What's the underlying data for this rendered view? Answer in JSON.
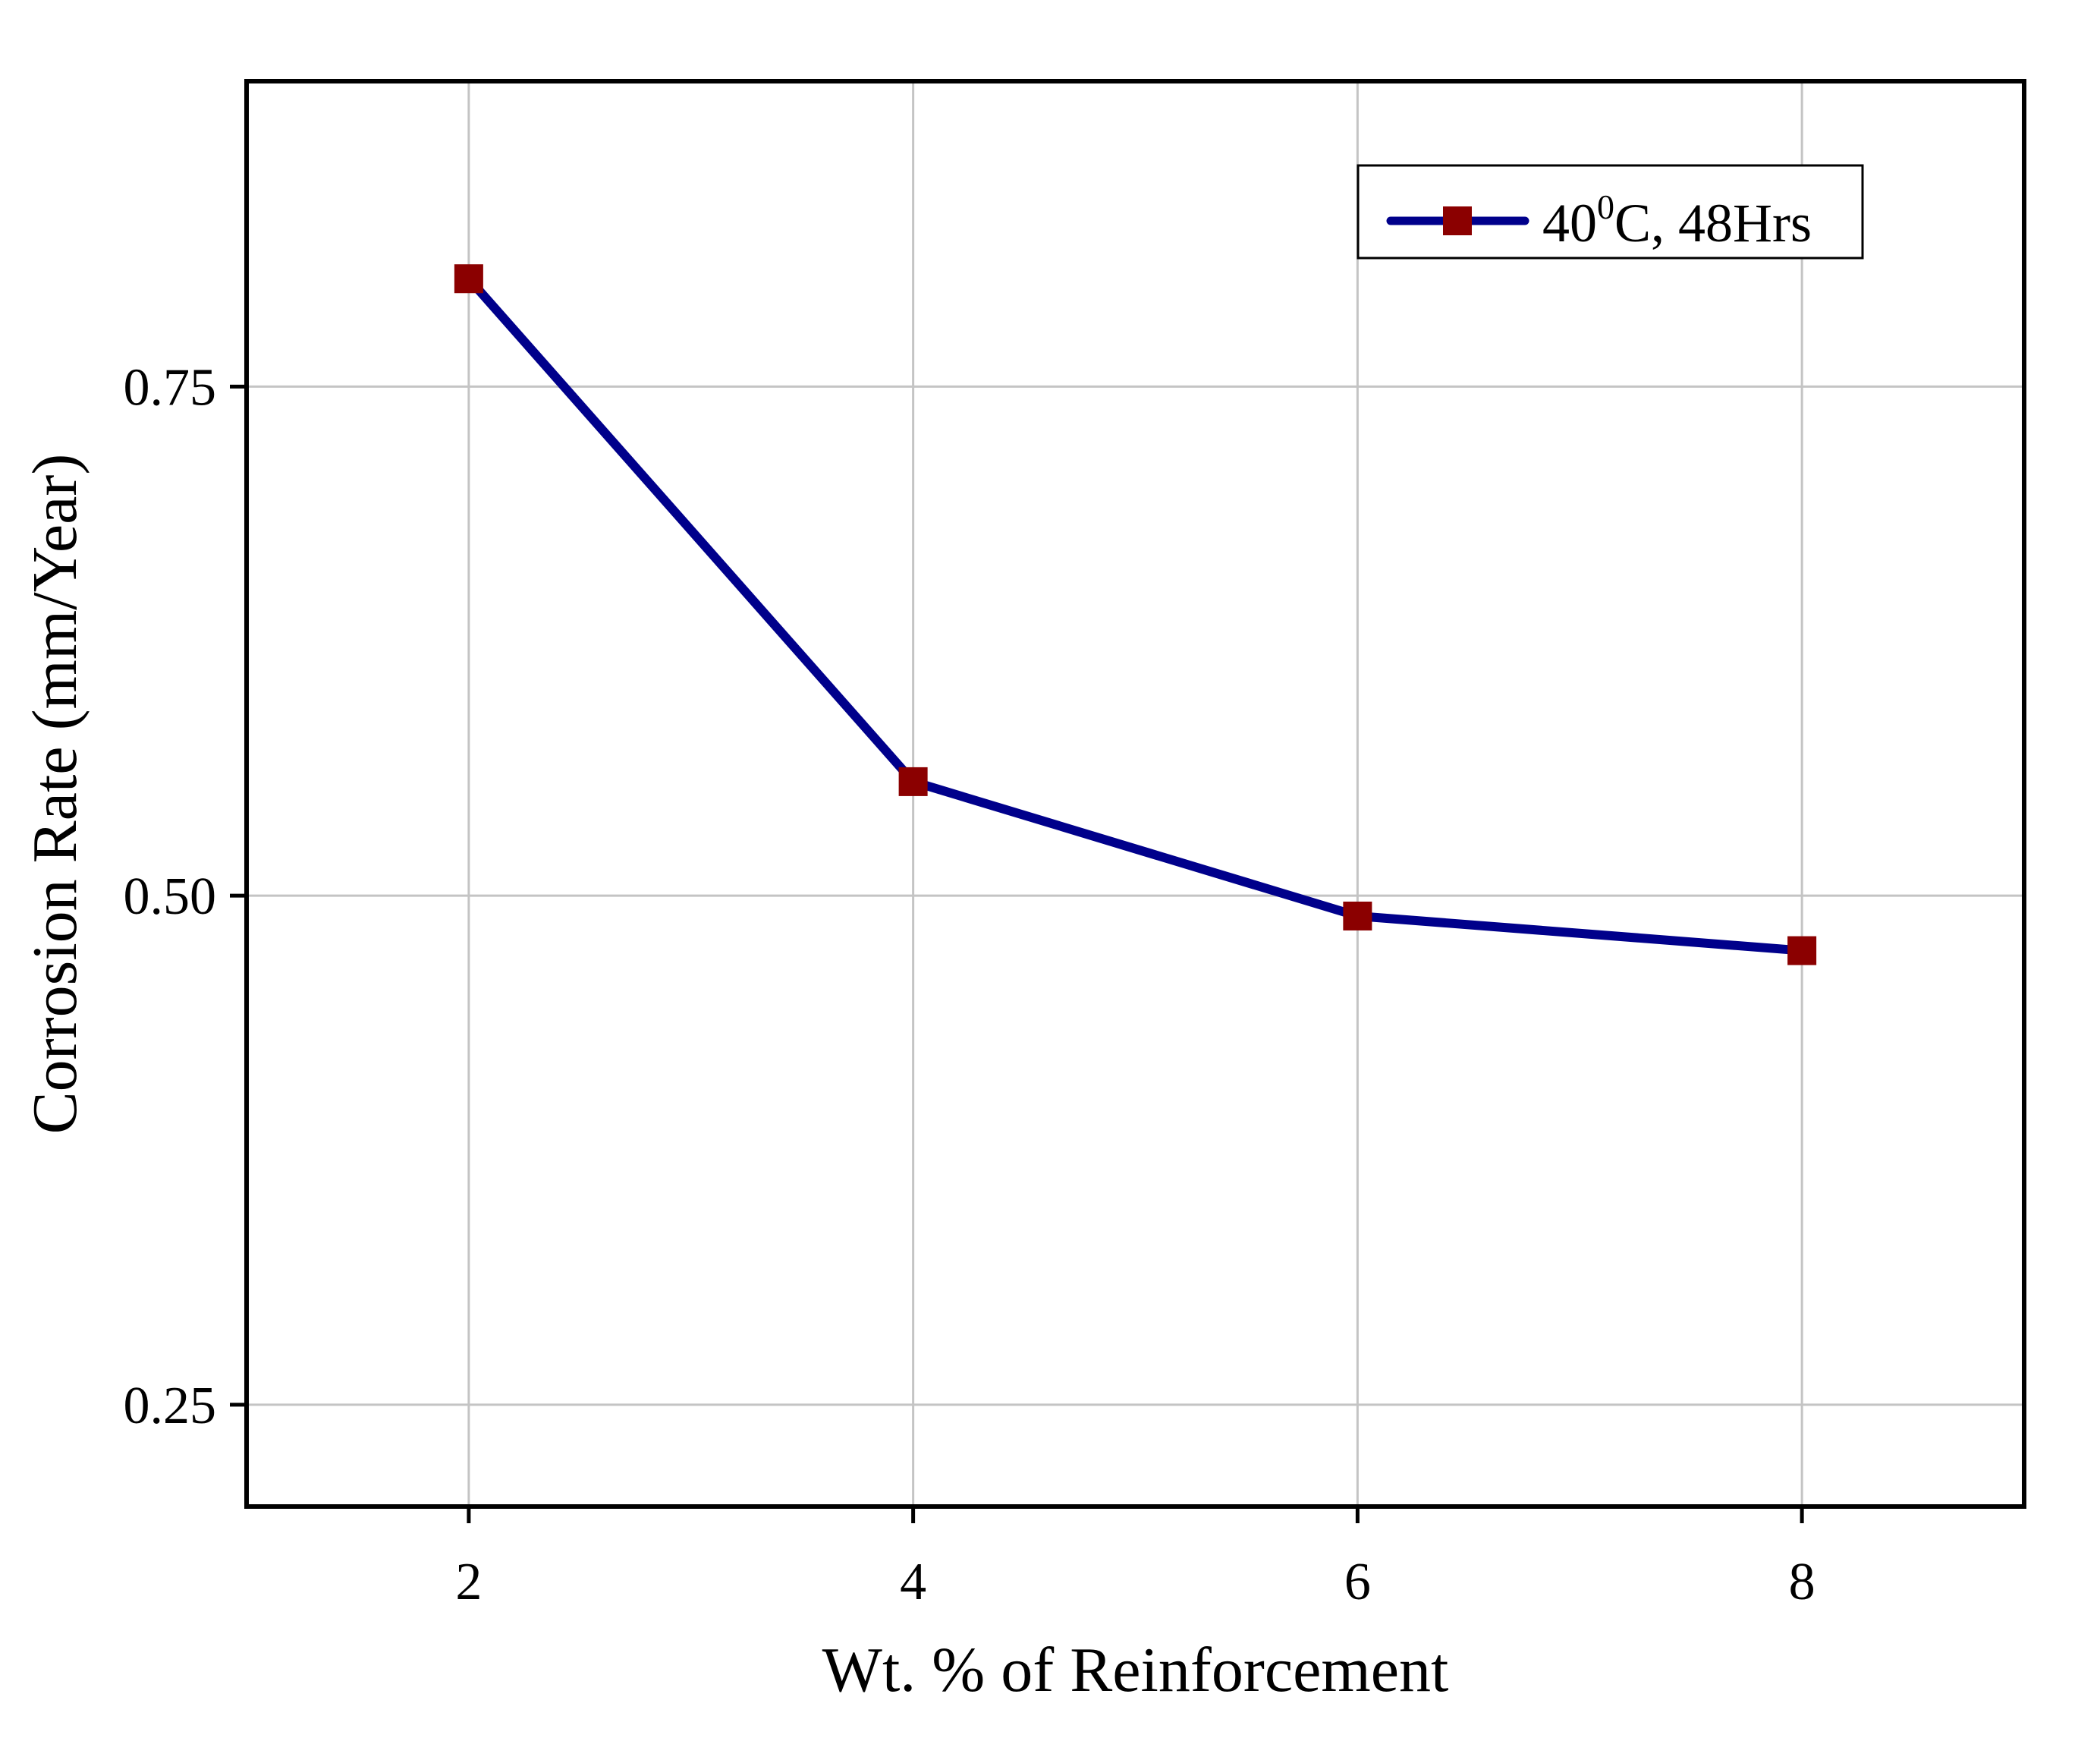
{
  "chart_data": {
    "type": "line",
    "title": "",
    "xlabel": "Wt. % of Reinforcement",
    "ylabel": "Corrosion Rate (mm/Year)",
    "xlim": [
      1,
      9
    ],
    "ylim": [
      0.2,
      0.9
    ],
    "xticks": [
      2,
      4,
      6,
      8
    ],
    "xtick_labels": [
      "2",
      "4",
      "6",
      "8"
    ],
    "yticks": [
      0.25,
      0.5,
      0.75
    ],
    "ytick_labels": [
      "0.25",
      "0.50",
      "0.75"
    ],
    "grid": true,
    "legend_position": "top-right",
    "legend_label_parts": [
      "40",
      "0",
      "C, 48Hrs"
    ],
    "series": [
      {
        "name": "40⁰C, 48Hrs",
        "line_color": "#00008B",
        "marker": "square",
        "marker_color": "#8B0000",
        "x": [
          2,
          4,
          6,
          8
        ],
        "values": [
          0.803,
          0.556,
          0.49,
          0.473
        ]
      }
    ]
  }
}
